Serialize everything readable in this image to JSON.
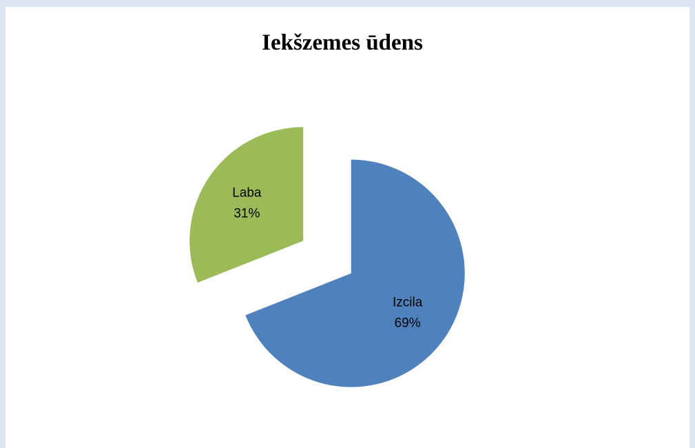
{
  "chart_data": {
    "type": "pie",
    "title": "Iekšzemes ūdens",
    "categories": [
      "Izcila",
      "Laba"
    ],
    "values": [
      69,
      31
    ],
    "value_labels": [
      "69%",
      "31%"
    ],
    "colors": [
      "#4f81bd",
      "#9bbb59"
    ],
    "exploded": true
  }
}
